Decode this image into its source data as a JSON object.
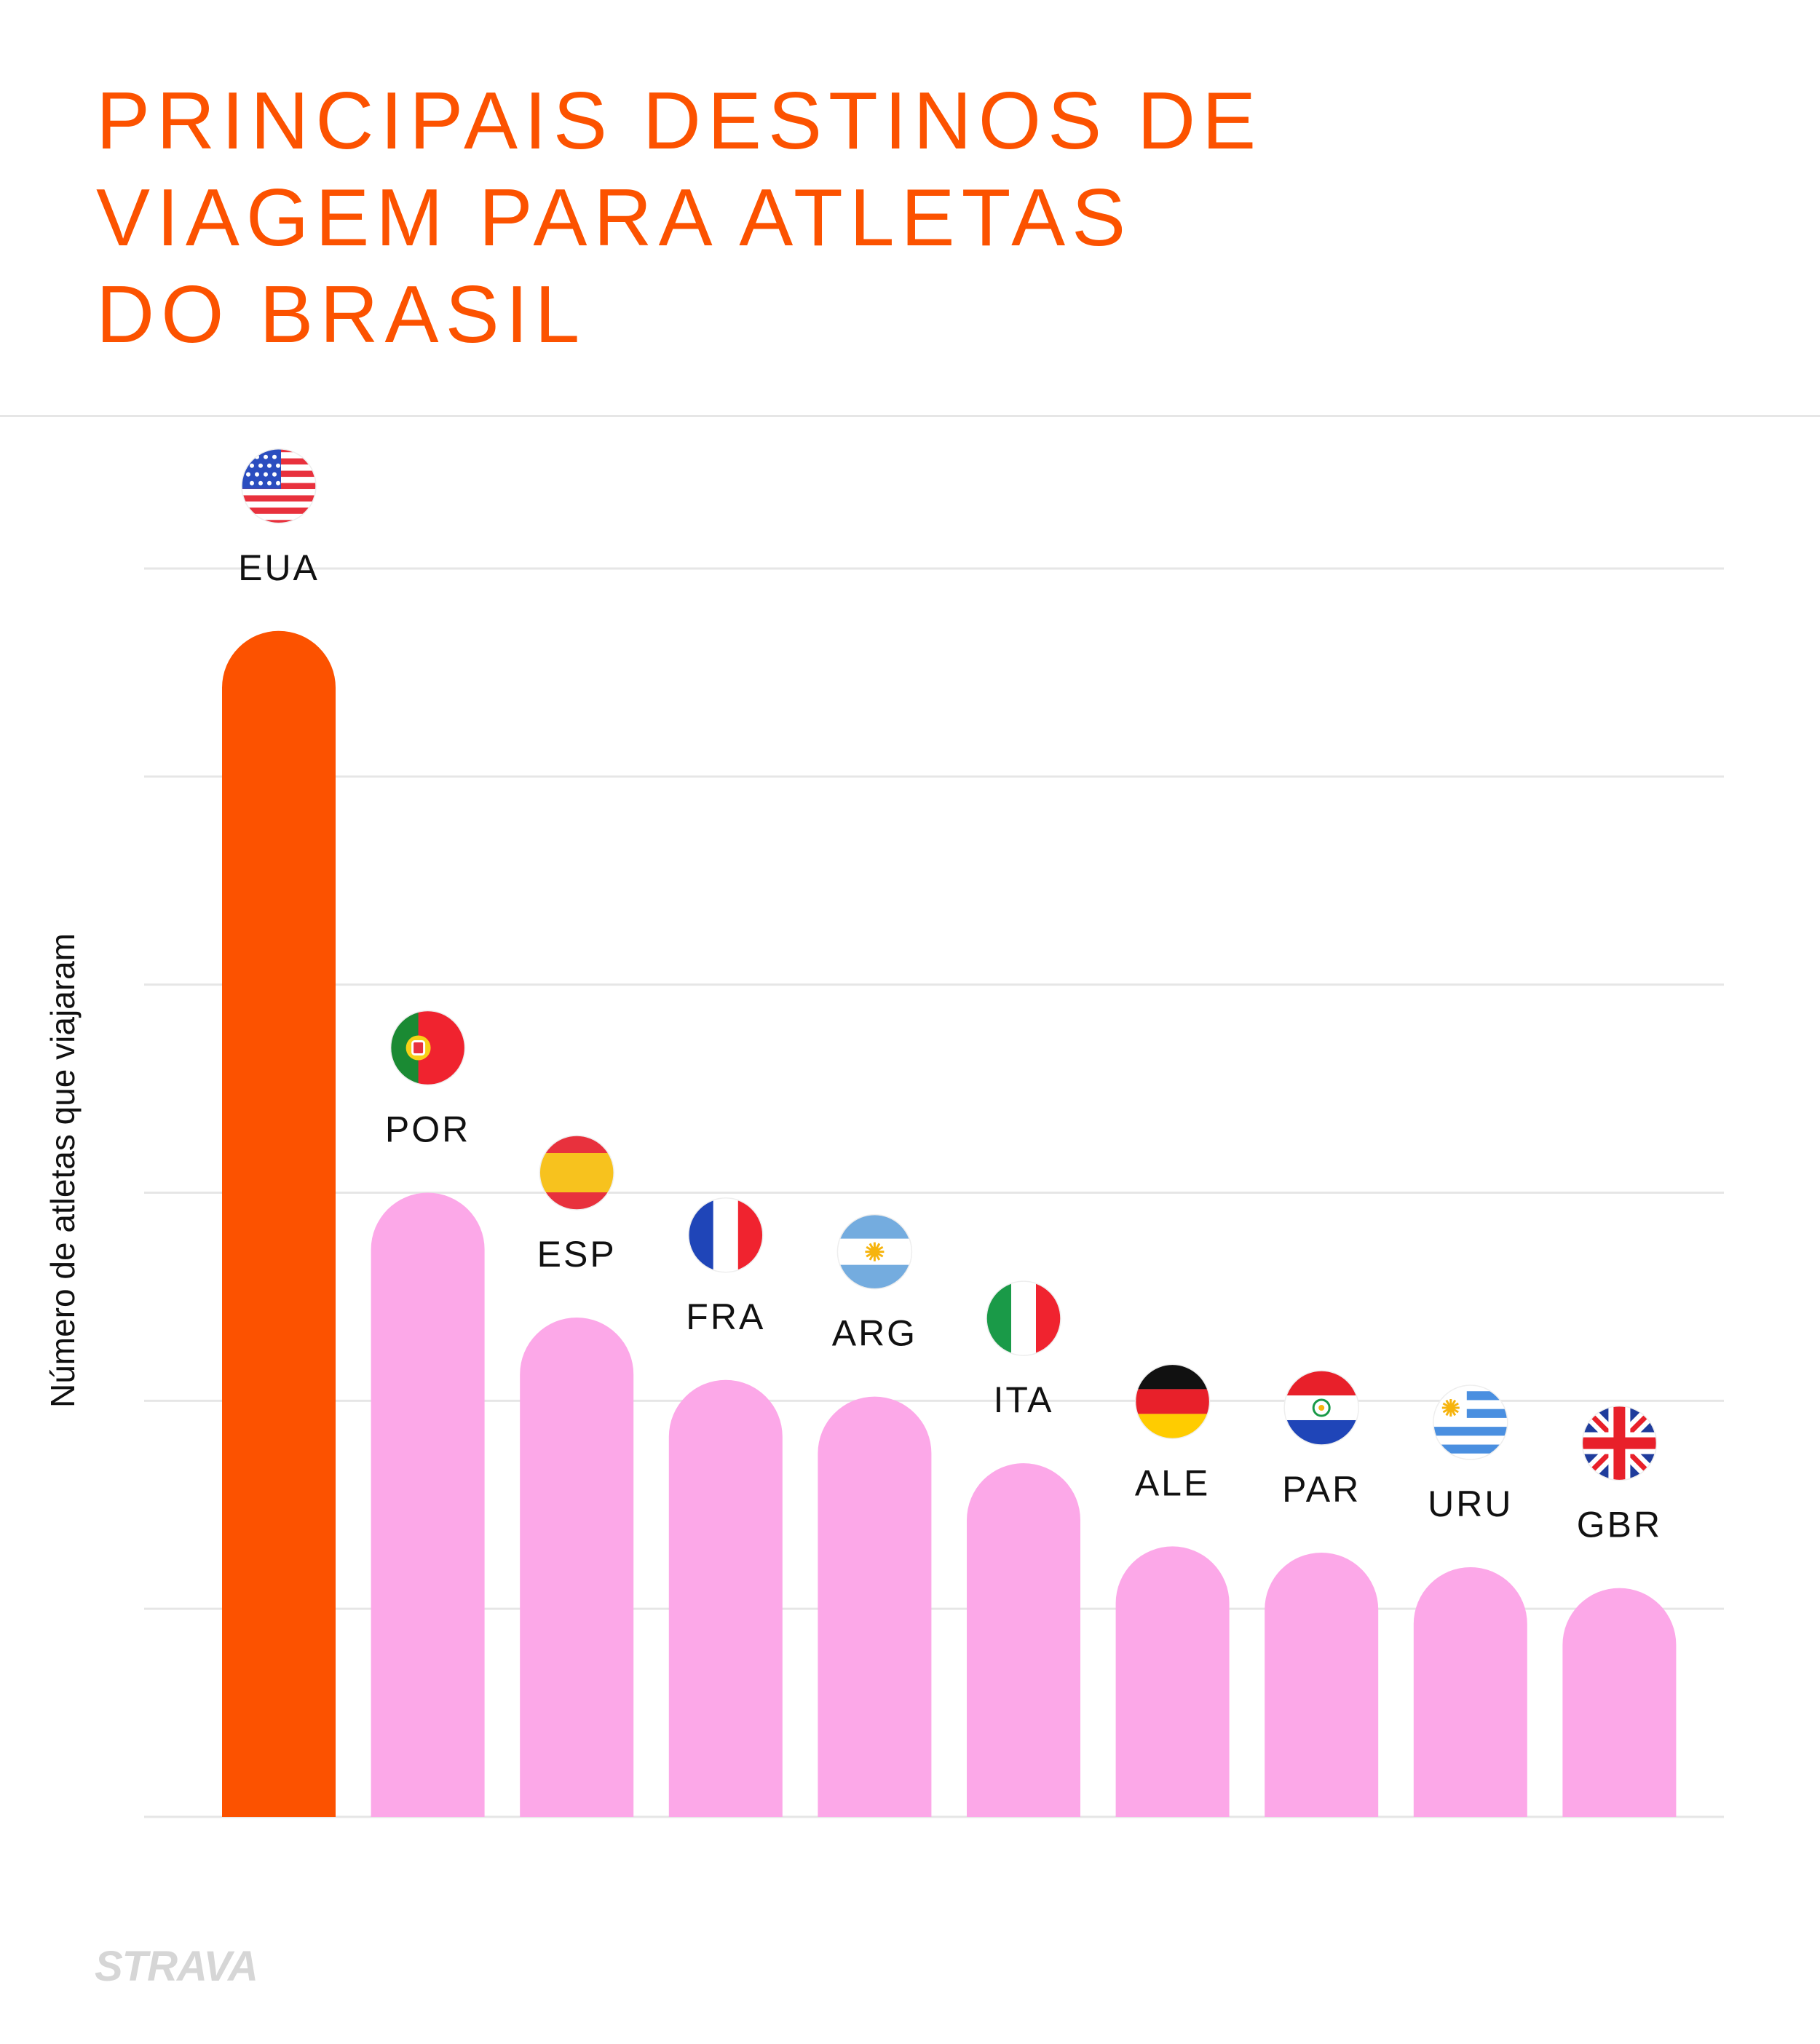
{
  "title_lines": [
    "PRINCIPAIS DESTINOS DE",
    "VIAGEM PARA ATLETAS",
    "DO BRASIL"
  ],
  "brand": "STRAVA",
  "colors": {
    "accent": "#fc5200",
    "bar_default": "#fca8e8",
    "grid": "#e6e6e6",
    "title": "#fc5200"
  },
  "chart_data": {
    "type": "bar",
    "title": "PRINCIPAIS DESTINOS DE VIAGEM PARA ATLETAS DO BRASIL",
    "xlabel": "",
    "ylabel": "Número de atletas que viajaram",
    "ylim": [
      0,
      6
    ],
    "grid": true,
    "y_tick_labels_shown": false,
    "categories": [
      "EUA",
      "POR",
      "ESP",
      "FRA",
      "ARG",
      "ITA",
      "ALE",
      "PAR",
      "URU",
      "GBR"
    ],
    "values": [
      5.7,
      3.0,
      2.4,
      2.1,
      2.02,
      1.7,
      1.3,
      1.27,
      1.2,
      1.1
    ],
    "flags": [
      "usa-flag-icon",
      "portugal-flag-icon",
      "spain-flag-icon",
      "france-flag-icon",
      "argentina-flag-icon",
      "italy-flag-icon",
      "germany-flag-icon",
      "paraguay-flag-icon",
      "uruguay-flag-icon",
      "uk-flag-icon"
    ],
    "highlight_index": 0
  }
}
